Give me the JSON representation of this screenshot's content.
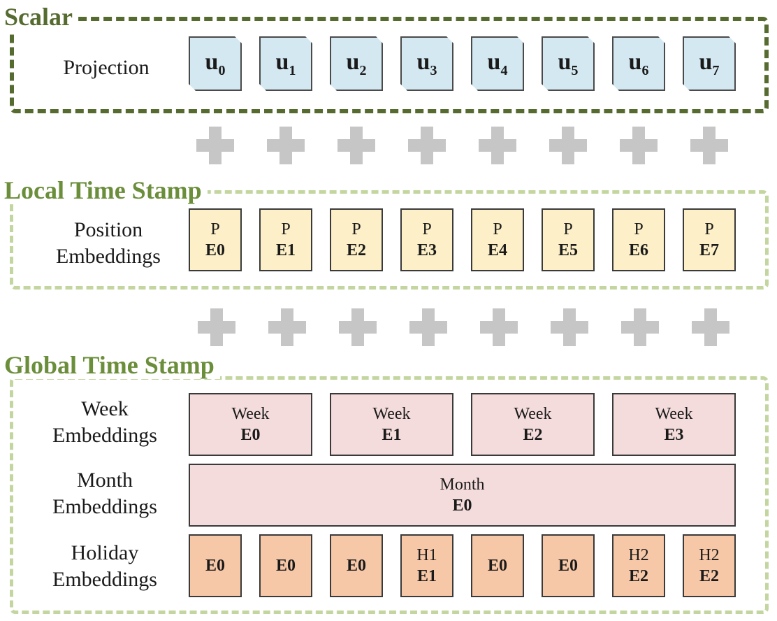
{
  "colors": {
    "scalar_frame": "#556b2f",
    "timestamp_frame": "#c4d6a0",
    "projection_fill": "#d4e8f2",
    "position_fill": "#fdf0c8",
    "week_month_fill": "#f5dcdc",
    "holiday_fill": "#f7c8a8",
    "plus_color": "#c6c6c6"
  },
  "scalar": {
    "title": "Scalar",
    "row_label": "Projection",
    "tokens": [
      {
        "base": "u",
        "sub": "0"
      },
      {
        "base": "u",
        "sub": "1"
      },
      {
        "base": "u",
        "sub": "2"
      },
      {
        "base": "u",
        "sub": "3"
      },
      {
        "base": "u",
        "sub": "4"
      },
      {
        "base": "u",
        "sub": "5"
      },
      {
        "base": "u",
        "sub": "6"
      },
      {
        "base": "u",
        "sub": "7"
      }
    ]
  },
  "local": {
    "title": "Local Time Stamp",
    "row_label_line1": "Position",
    "row_label_line2": "Embeddings",
    "boxes": [
      {
        "top": "P",
        "bottom": "E0"
      },
      {
        "top": "P",
        "bottom": "E1"
      },
      {
        "top": "P",
        "bottom": "E2"
      },
      {
        "top": "P",
        "bottom": "E3"
      },
      {
        "top": "P",
        "bottom": "E4"
      },
      {
        "top": "P",
        "bottom": "E5"
      },
      {
        "top": "P",
        "bottom": "E6"
      },
      {
        "top": "P",
        "bottom": "E7"
      }
    ]
  },
  "global": {
    "title": "Global Time Stamp",
    "week": {
      "label_line1": "Week",
      "label_line2": "Embeddings",
      "boxes": [
        {
          "top": "Week",
          "bottom": "E0"
        },
        {
          "top": "Week",
          "bottom": "E1"
        },
        {
          "top": "Week",
          "bottom": "E2"
        },
        {
          "top": "Week",
          "bottom": "E3"
        }
      ]
    },
    "month": {
      "label_line1": "Month",
      "label_line2": "Embeddings",
      "box": {
        "top": "Month",
        "bottom": "E0"
      }
    },
    "holiday": {
      "label_line1": "Holiday",
      "label_line2": "Embeddings",
      "boxes": [
        {
          "top": "",
          "bottom": "E0"
        },
        {
          "top": "",
          "bottom": "E0"
        },
        {
          "top": "",
          "bottom": "E0"
        },
        {
          "top": "H1",
          "bottom": "E1"
        },
        {
          "top": "",
          "bottom": "E0"
        },
        {
          "top": "",
          "bottom": "E0"
        },
        {
          "top": "H2",
          "bottom": "E2"
        },
        {
          "top": "H2",
          "bottom": "E2"
        }
      ]
    }
  }
}
